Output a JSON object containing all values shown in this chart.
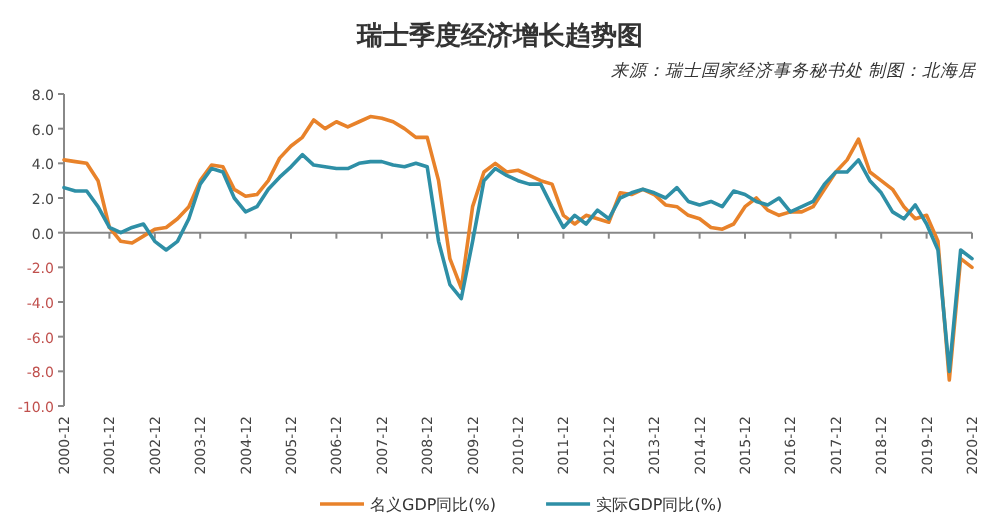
{
  "chart_data": {
    "type": "line",
    "title": "瑞士季度经济增长趋势图",
    "annotations": [
      "来源：瑞士国家经济事务秘书处  制图：北海居"
    ],
    "categories": [
      "2000-12",
      null,
      null,
      null,
      "2001-12",
      null,
      null,
      null,
      "2002-12",
      null,
      null,
      null,
      "2003-12",
      null,
      null,
      null,
      "2004-12",
      null,
      null,
      null,
      "2005-12",
      null,
      null,
      null,
      "2006-12",
      null,
      null,
      null,
      "2007-12",
      null,
      null,
      null,
      "2008-12",
      null,
      null,
      null,
      "2009-12",
      null,
      null,
      null,
      "2010-12",
      null,
      null,
      null,
      "2011-12",
      null,
      null,
      null,
      "2012-12",
      null,
      null,
      null,
      "2013-12",
      null,
      null,
      null,
      "2014-12",
      null,
      null,
      null,
      "2015-12",
      null,
      null,
      null,
      "2016-12",
      null,
      null,
      null,
      "2017-12",
      null,
      null,
      null,
      "2018-12",
      null,
      null,
      null,
      "2019-12",
      null,
      null,
      null,
      "2020-12"
    ],
    "series": [
      {
        "name": "名义GDP同比(%)",
        "color": "#e8822a",
        "values": [
          4.2,
          4.1,
          4.0,
          3.0,
          0.3,
          -0.5,
          -0.6,
          -0.2,
          0.2,
          0.3,
          0.8,
          1.5,
          3.0,
          3.9,
          3.8,
          2.5,
          2.1,
          2.2,
          3.0,
          4.3,
          5.0,
          5.5,
          6.5,
          6.0,
          6.4,
          6.1,
          6.4,
          6.7,
          6.6,
          6.4,
          6.0,
          5.5,
          5.5,
          3.0,
          -1.5,
          -3.2,
          1.5,
          3.5,
          4.0,
          3.5,
          3.6,
          3.3,
          3.0,
          2.8,
          1.0,
          0.5,
          1.0,
          0.8,
          0.6,
          2.3,
          2.2,
          2.5,
          2.2,
          1.6,
          1.5,
          1.0,
          0.8,
          0.3,
          0.2,
          0.5,
          1.5,
          2.0,
          1.3,
          1.0,
          1.2,
          1.2,
          1.5,
          2.5,
          3.5,
          4.2,
          5.4,
          3.5,
          3.0,
          2.5,
          1.5,
          0.8,
          1.0,
          -0.5,
          -8.5,
          -1.5,
          -2.0
        ]
      },
      {
        "name": "实际GDP同比(%)",
        "color": "#2e8fa6",
        "values": [
          2.6,
          2.4,
          2.4,
          1.5,
          0.3,
          0.0,
          0.3,
          0.5,
          -0.5,
          -1.0,
          -0.5,
          0.8,
          2.8,
          3.7,
          3.5,
          2.0,
          1.2,
          1.5,
          2.5,
          3.2,
          3.8,
          4.5,
          3.9,
          3.8,
          3.7,
          3.7,
          4.0,
          4.1,
          4.1,
          3.9,
          3.8,
          4.0,
          3.8,
          -0.5,
          -3.0,
          -3.8,
          -0.5,
          3.0,
          3.7,
          3.3,
          3.0,
          2.8,
          2.8,
          1.5,
          0.3,
          1.0,
          0.5,
          1.3,
          0.8,
          2.0,
          2.3,
          2.5,
          2.3,
          2.0,
          2.6,
          1.8,
          1.6,
          1.8,
          1.5,
          2.4,
          2.2,
          1.8,
          1.6,
          2.0,
          1.2,
          1.5,
          1.8,
          2.8,
          3.5,
          3.5,
          4.2,
          3.0,
          2.3,
          1.2,
          0.8,
          1.6,
          0.5,
          -1.0,
          -8.0,
          -1.0,
          -1.5
        ]
      }
    ],
    "ylim": [
      -10,
      8
    ],
    "yticks": [
      {
        "value": 8,
        "label": "8.0"
      },
      {
        "value": 6,
        "label": "6.0"
      },
      {
        "value": 4,
        "label": "4.0"
      },
      {
        "value": 2,
        "label": "2.0"
      },
      {
        "value": 0,
        "label": "0.0"
      },
      {
        "value": -2,
        "label": "-2.0"
      },
      {
        "value": -4,
        "label": "-4.0"
      },
      {
        "value": -6,
        "label": "-6.0"
      },
      {
        "value": -8,
        "label": "-8.0"
      },
      {
        "value": -10,
        "label": "-10.0"
      }
    ],
    "legend": "bottom",
    "marker": "none",
    "line_style": "solid"
  }
}
